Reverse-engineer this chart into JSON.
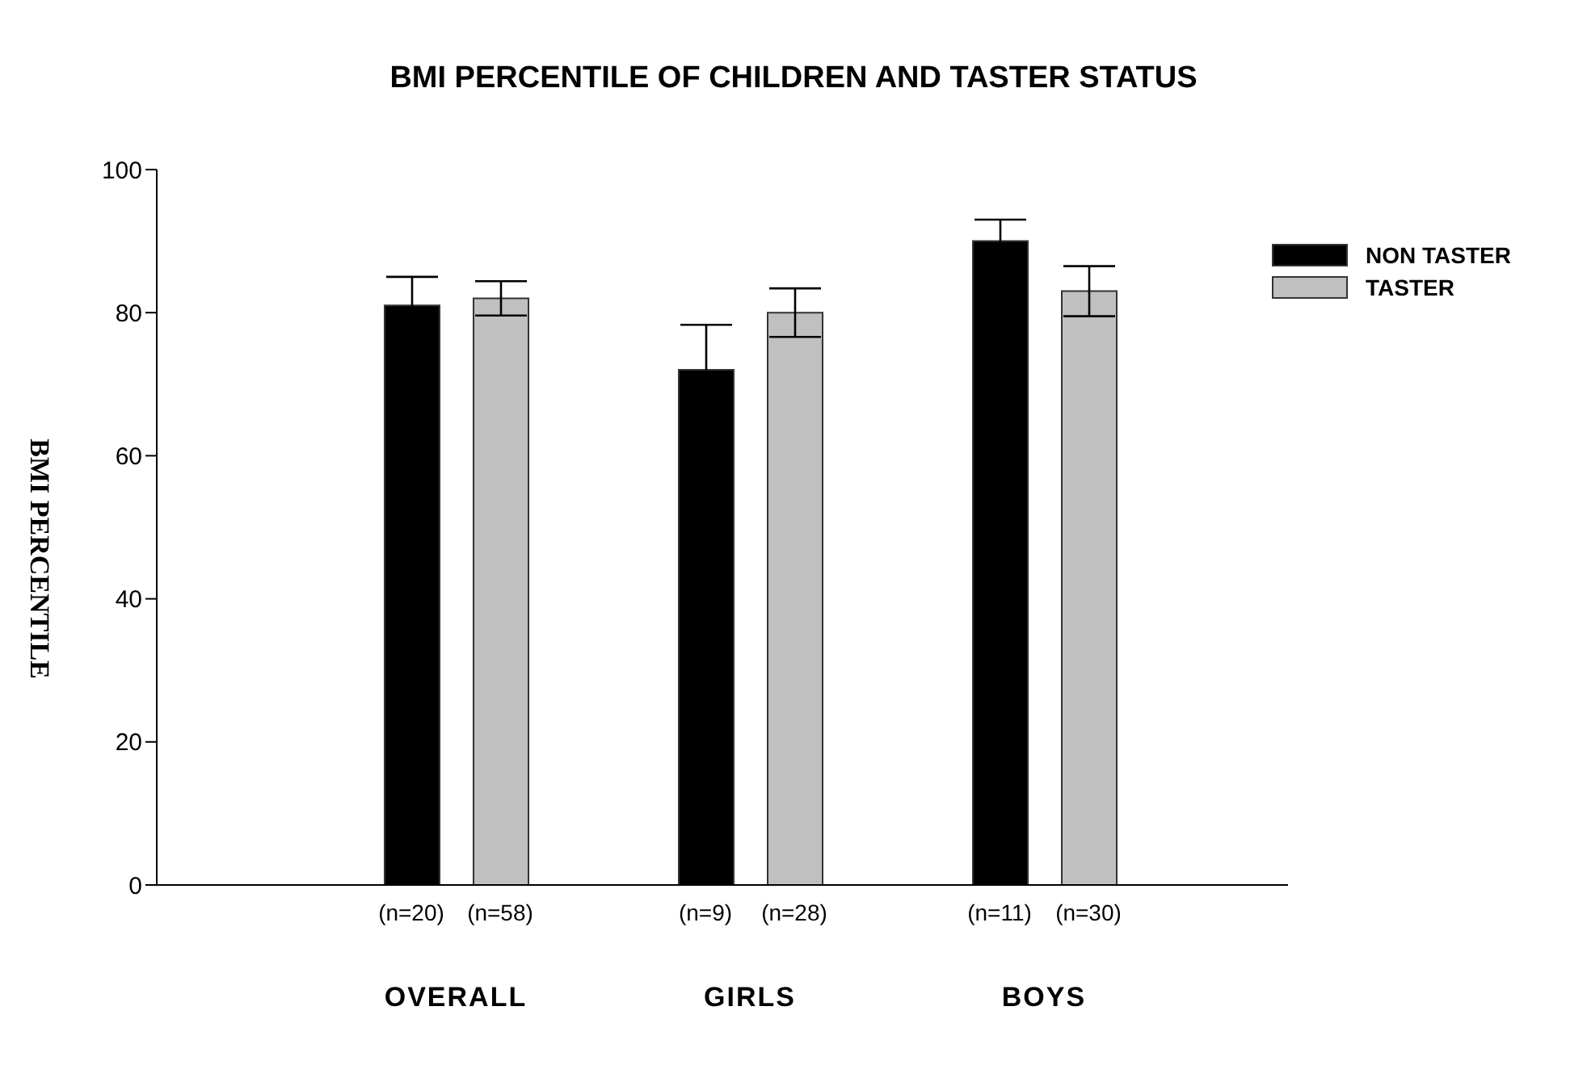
{
  "chart_data": {
    "type": "bar",
    "title": "BMI PERCENTILE OF CHILDREN AND TASTER STATUS",
    "ylabel": "BMI PERCENTILE",
    "categories": [
      "OVERALL",
      "GIRLS",
      "BOYS"
    ],
    "series": [
      {
        "name": "NON TASTER",
        "color": "#000000",
        "values": [
          81,
          72,
          90
        ],
        "errors": [
          4,
          6.3,
          3
        ]
      },
      {
        "name": "TASTER",
        "color": "#c0c0c0",
        "values": [
          82,
          80,
          83
        ],
        "errors": [
          2.4,
          3.4,
          3.5
        ]
      }
    ],
    "annotations": [
      "(n=20)",
      "(n=58)",
      "(n=9)",
      "(n=28)",
      "(n=11)",
      "(n=30)"
    ],
    "ylim": [
      0,
      100
    ],
    "yticks": [
      0,
      20,
      40,
      60,
      80,
      100
    ],
    "grid": false,
    "legend": "top right"
  }
}
